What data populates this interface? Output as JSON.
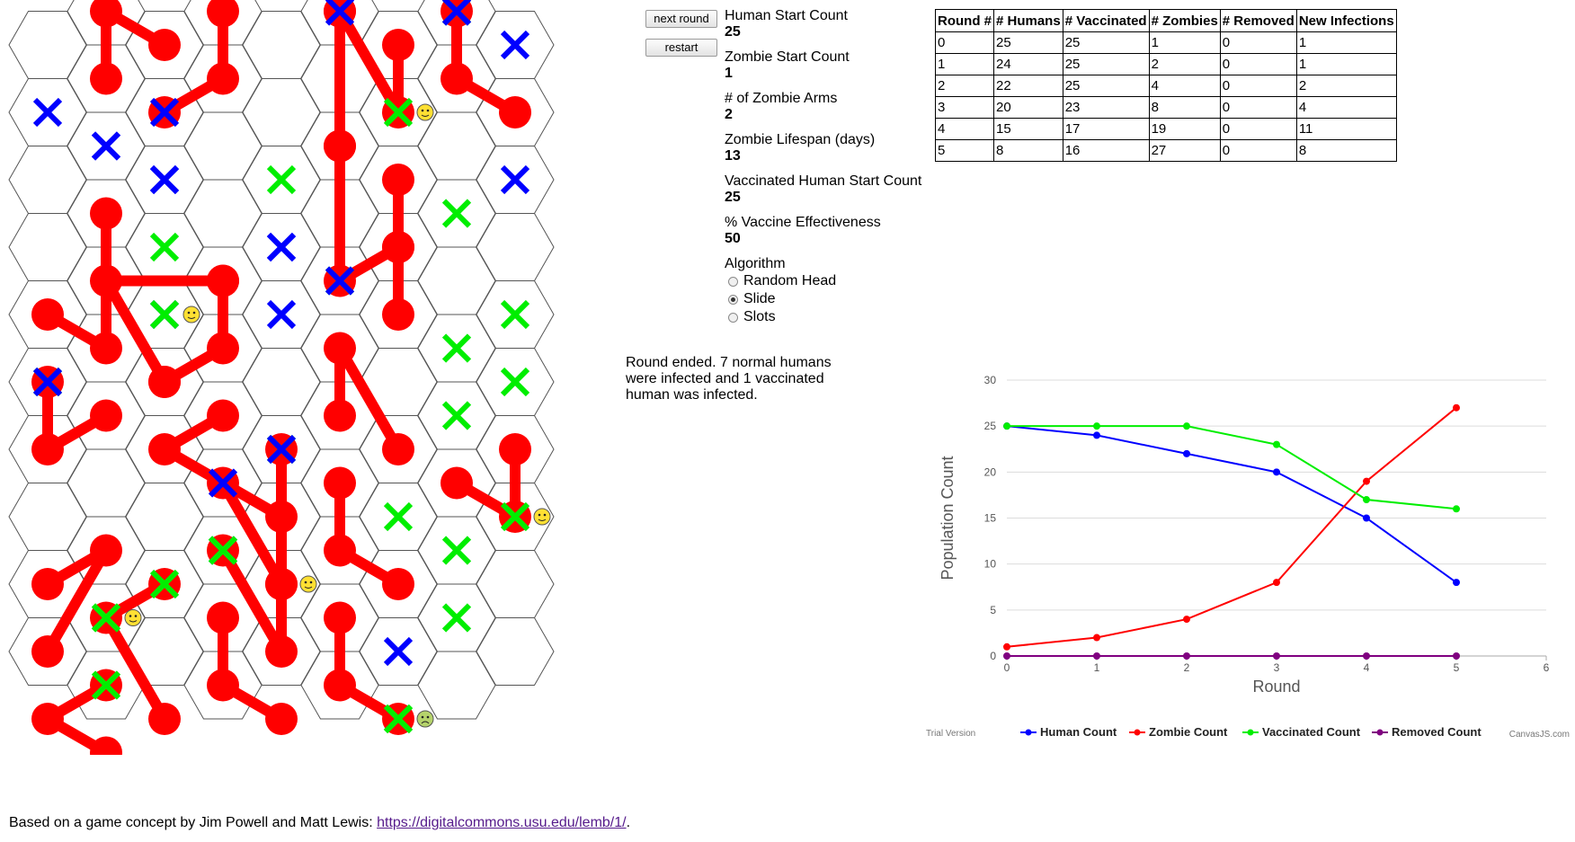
{
  "controls": {
    "next_round": "next round",
    "restart": "restart"
  },
  "params": [
    {
      "label": "Human Start Count",
      "value": "25"
    },
    {
      "label": "Zombie Start Count",
      "value": "1"
    },
    {
      "label": "# of Zombie Arms",
      "value": "2"
    },
    {
      "label": "Zombie Lifespan (days)",
      "value": "13"
    },
    {
      "label": "Vaccinated Human Start Count",
      "value": "25"
    },
    {
      "label": "% Vaccine Effectiveness",
      "value": "50"
    }
  ],
  "algorithm": {
    "label": "Algorithm",
    "options": [
      {
        "label": "Random Head",
        "checked": false
      },
      {
        "label": "Slide",
        "checked": true
      },
      {
        "label": "Slots",
        "checked": false
      }
    ]
  },
  "status_message": "Round ended. 7 normal humans were infected and 1 vaccinated human was infected.",
  "table": {
    "headers": [
      "Round #",
      "# Humans",
      "# Vaccinated",
      "# Zombies",
      "# Removed",
      "New Infections"
    ],
    "rows": [
      [
        "0",
        "25",
        "25",
        "1",
        "0",
        "1"
      ],
      [
        "1",
        "24",
        "25",
        "2",
        "0",
        "1"
      ],
      [
        "2",
        "22",
        "25",
        "4",
        "0",
        "2"
      ],
      [
        "3",
        "20",
        "23",
        "8",
        "0",
        "4"
      ],
      [
        "4",
        "15",
        "17",
        "19",
        "0",
        "11"
      ],
      [
        "5",
        "8",
        "16",
        "27",
        "0",
        "8"
      ]
    ]
  },
  "board": {
    "cols": 9,
    "rows": 10,
    "colors": {
      "zombie": "#ff0000",
      "human": "#0000ff",
      "vaccinated": "#00ee00",
      "grid": "#555555"
    },
    "humans": [
      [
        0,
        1
      ],
      [
        1,
        2
      ],
      [
        2,
        1
      ],
      [
        2,
        2
      ],
      [
        2,
        4
      ],
      [
        4,
        3
      ],
      [
        5,
        0
      ],
      [
        6,
        9
      ],
      [
        3,
        7
      ],
      [
        3,
        8
      ],
      [
        7,
        0
      ],
      [
        4,
        4
      ],
      [
        8,
        2
      ]
    ],
    "vaccinated": [
      [
        0,
        5
      ],
      [
        1,
        9
      ],
      [
        3,
        8
      ],
      [
        5,
        4
      ],
      [
        4,
        6
      ],
      [
        6,
        7
      ],
      [
        7,
        0
      ],
      [
        7,
        3
      ],
      [
        4,
        2
      ],
      [
        2,
        8
      ],
      [
        7,
        8
      ],
      [
        8,
        4
      ],
      [
        7,
        5
      ],
      [
        7,
        6
      ],
      [
        6,
        10
      ],
      [
        1,
        10
      ],
      [
        7,
        9
      ],
      [
        2,
        3
      ],
      [
        8,
        5
      ]
    ],
    "zombies": [
      [
        [
          1,
          0
        ],
        [
          1,
          1
        ],
        [
          2,
          0
        ]
      ],
      [
        [
          3,
          1
        ],
        [
          3,
          0
        ],
        [
          2,
          1
        ]
      ],
      [
        [
          6,
          1
        ],
        [
          6,
          0
        ],
        [
          5,
          0
        ]
      ],
      [
        [
          5,
          2
        ],
        [
          5,
          0
        ]
      ],
      [
        [
          7,
          1
        ],
        [
          7,
          0
        ],
        [
          8,
          1
        ]
      ],
      [
        [
          6,
          3
        ],
        [
          6,
          4
        ],
        [
          6,
          2
        ]
      ],
      [
        [
          5,
          4
        ],
        [
          5,
          2
        ],
        [
          6,
          3
        ]
      ],
      [
        [
          1,
          4
        ],
        [
          2,
          5
        ],
        [
          3,
          4
        ]
      ],
      [
        [
          1,
          5
        ],
        [
          1,
          3
        ],
        [
          0,
          4
        ]
      ],
      [
        [
          3,
          5
        ],
        [
          3,
          4
        ],
        [
          2,
          5
        ]
      ],
      [
        [
          0,
          6
        ],
        [
          0,
          5
        ],
        [
          1,
          6
        ]
      ],
      [
        [
          2,
          6
        ],
        [
          3,
          6
        ],
        [
          4,
          7
        ]
      ],
      [
        [
          5,
          5
        ],
        [
          5,
          6
        ],
        [
          6,
          6
        ]
      ],
      [
        [
          4,
          8
        ],
        [
          3,
          7
        ],
        [
          4,
          6
        ]
      ],
      [
        [
          1,
          8
        ],
        [
          0,
          8
        ],
        [
          0,
          9
        ]
      ],
      [
        [
          1,
          9
        ],
        [
          2,
          8
        ],
        [
          2,
          10
        ]
      ],
      [
        [
          4,
          9
        ],
        [
          3,
          8
        ],
        [
          4,
          8
        ]
      ],
      [
        [
          5,
          8
        ],
        [
          5,
          7
        ],
        [
          6,
          8
        ]
      ],
      [
        [
          0,
          10
        ],
        [
          1,
          10
        ],
        [
          1,
          11
        ]
      ],
      [
        [
          3,
          10
        ],
        [
          3,
          9
        ],
        [
          4,
          10
        ]
      ],
      [
        [
          5,
          10
        ],
        [
          5,
          9
        ],
        [
          6,
          10
        ]
      ],
      [
        [
          8,
          7
        ],
        [
          8,
          6
        ],
        [
          7,
          7
        ]
      ]
    ],
    "vaccinated_on_zombie": [
      [
        6,
        1
      ],
      [
        1,
        9
      ],
      [
        3,
        8
      ],
      [
        6,
        10
      ],
      [
        2,
        4
      ],
      [
        8,
        7
      ]
    ],
    "humans_on_zombie": [
      [
        1,
        2
      ],
      [
        2,
        2
      ],
      [
        0,
        5
      ],
      [
        4,
        3
      ],
      [
        5,
        4
      ],
      [
        4,
        6
      ],
      [
        8,
        0
      ],
      [
        7,
        0
      ]
    ],
    "smileys": [
      [
        6,
        1,
        "happy"
      ],
      [
        2,
        4,
        "happy"
      ],
      [
        8,
        7,
        "happy"
      ],
      [
        4,
        8,
        "happy"
      ],
      [
        1,
        9,
        "happy"
      ],
      [
        6,
        10,
        "sick"
      ]
    ]
  },
  "chart_data": {
    "type": "line",
    "title": "",
    "xlabel": "Round",
    "ylabel": "Population Count",
    "x": [
      0,
      1,
      2,
      3,
      4,
      5
    ],
    "xlim": [
      0,
      6
    ],
    "ylim": [
      0,
      30
    ],
    "xticks": [
      0,
      1,
      2,
      3,
      4,
      5,
      6
    ],
    "yticks": [
      0,
      5,
      10,
      15,
      20,
      25,
      30
    ],
    "grid": true,
    "legend_position": "bottom",
    "series": [
      {
        "name": "Human Count",
        "color": "#0000ff",
        "values": [
          25,
          24,
          22,
          20,
          15,
          8
        ]
      },
      {
        "name": "Zombie Count",
        "color": "#ff0000",
        "values": [
          1,
          2,
          4,
          8,
          19,
          27
        ]
      },
      {
        "name": "Vaccinated Count",
        "color": "#00ee00",
        "values": [
          25,
          25,
          25,
          23,
          17,
          16
        ]
      },
      {
        "name": "Removed Count",
        "color": "#800080",
        "values": [
          0,
          0,
          0,
          0,
          0,
          0
        ]
      }
    ],
    "watermark_left": "Trial Version",
    "watermark_right": "CanvasJS.com"
  },
  "footer": {
    "text": "Based on a game concept by Jim Powell and Matt Lewis: ",
    "link_text": "https://digitalcommons.usu.edu/lemb/1/",
    "suffix": "."
  }
}
